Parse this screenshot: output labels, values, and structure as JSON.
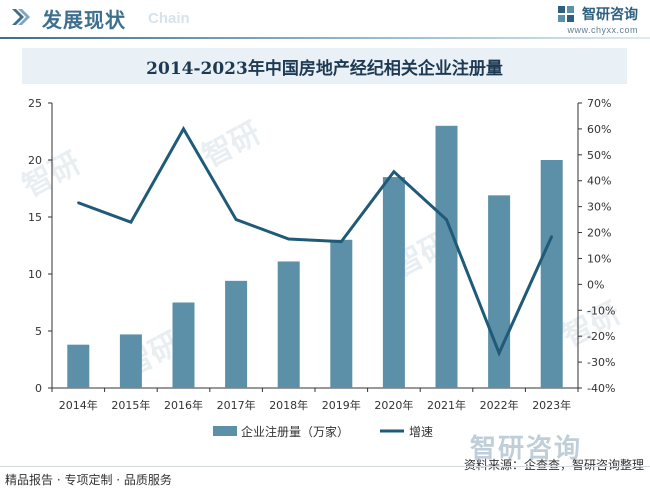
{
  "header": {
    "title": "发展现状",
    "watermark": "Chain",
    "brand_name": "智研咨询",
    "brand_url": "www.chyxx.com"
  },
  "chart_data": {
    "type": "bar",
    "title": "2014-2023年中国房地产经纪相关企业注册量",
    "categories": [
      "2014年",
      "2015年",
      "2016年",
      "2017年",
      "2018年",
      "2019年",
      "2020年",
      "2021年",
      "2022年",
      "2023年"
    ],
    "series": [
      {
        "name": "企业注册量（万家）",
        "type": "bar",
        "axis": "left",
        "color": "#5c8fa8",
        "values": [
          3.8,
          4.7,
          7.5,
          9.4,
          11.1,
          13.0,
          18.5,
          23.0,
          16.9,
          20.0
        ]
      },
      {
        "name": "增速",
        "type": "line",
        "axis": "right",
        "color": "#1f5a78",
        "values": [
          31.5,
          24.0,
          60.0,
          25.0,
          17.5,
          16.5,
          43.5,
          25.0,
          -26.5,
          18.5
        ]
      }
    ],
    "y_left": {
      "min": 0,
      "max": 25,
      "ticks": [
        "0",
        "5",
        "10",
        "15",
        "20",
        "25"
      ]
    },
    "y_right": {
      "min": -40,
      "max": 70,
      "ticks": [
        "-40%",
        "-30%",
        "-20%",
        "-10%",
        "0%",
        "10%",
        "20%",
        "30%",
        "40%",
        "50%",
        "60%",
        "70%"
      ]
    },
    "legend_position": "bottom",
    "grid": false
  },
  "footer": {
    "left": "精品报告 · 专项定制 · 品质服务",
    "right": "资料来源：企查查，智研咨询整理",
    "watermark_text": "智研咨询"
  }
}
